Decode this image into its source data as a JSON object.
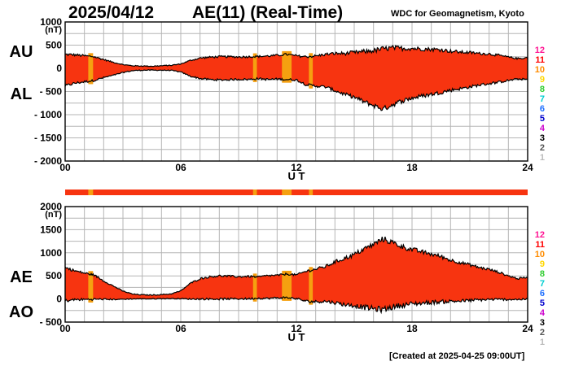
{
  "header": {
    "date": "2025/04/12",
    "title": "AE(11) (Real-Time)",
    "source": "WDC for Geomagnetism, Kyoto"
  },
  "footer": {
    "created": "[Created at 2025-04-25 09:00UT]"
  },
  "colors": {
    "fill": "#f73410",
    "highlight": "#f5a010",
    "outline": "#000000",
    "grid": "#b5b5b5",
    "station_count_colors": {
      "12": "#ff1493",
      "11": "#ff0000",
      "10": "#ff8c00",
      "9": "#ffd700",
      "8": "#32cd32",
      "7": "#00ced1",
      "6": "#1e6fff",
      "5": "#0000cd",
      "4": "#cc00cc",
      "3": "#000000",
      "2": "#555555",
      "1": "#bbbbbb"
    }
  },
  "chart_data": [
    {
      "type": "area",
      "panel": "AU/AL",
      "series_labels": [
        "AU",
        "AL"
      ],
      "y_unit_label": "(nT)",
      "xlabel": "U T",
      "xlim": [
        0,
        24
      ],
      "x_ticks": [
        "00",
        "06",
        "12",
        "18",
        "24"
      ],
      "ylim": [
        -2000,
        1000
      ],
      "y_ticks": [
        {
          "value": 1000,
          "label": "1000"
        },
        {
          "value": 500,
          "label": "500"
        },
        {
          "value": 0,
          "label": "0"
        },
        {
          "value": -500,
          "label": "- 500"
        },
        {
          "value": -1000,
          "label": "- 1000"
        },
        {
          "value": -1500,
          "label": "- 1500"
        },
        {
          "value": -2000,
          "label": "- 2000"
        }
      ],
      "grid": true,
      "x": [
        0,
        0.5,
        1,
        1.5,
        2,
        2.5,
        3,
        3.5,
        4,
        4.5,
        5,
        5.5,
        6,
        6.5,
        7,
        7.5,
        8,
        8.5,
        9,
        9.5,
        10,
        10.5,
        11,
        11.5,
        12,
        12.5,
        13,
        13.5,
        14,
        14.5,
        15,
        15.5,
        16,
        16.5,
        17,
        17.5,
        18,
        18.5,
        19,
        19.5,
        20,
        20.5,
        21,
        21.5,
        22,
        22.5,
        23,
        23.5,
        24
      ],
      "series": [
        {
          "name": "AU",
          "values": [
            300,
            290,
            270,
            250,
            190,
            130,
            80,
            55,
            50,
            45,
            55,
            65,
            95,
            170,
            220,
            240,
            250,
            250,
            245,
            250,
            255,
            265,
            280,
            300,
            270,
            250,
            265,
            300,
            320,
            320,
            340,
            360,
            380,
            420,
            440,
            430,
            430,
            420,
            410,
            400,
            370,
            350,
            340,
            320,
            310,
            280,
            240,
            210,
            230
          ]
        },
        {
          "name": "AL",
          "values": [
            -380,
            -320,
            -290,
            -260,
            -200,
            -150,
            -90,
            -50,
            -40,
            -40,
            -40,
            -45,
            -80,
            -170,
            -220,
            -240,
            -250,
            -245,
            -235,
            -240,
            -220,
            -240,
            -230,
            -240,
            -250,
            -350,
            -380,
            -400,
            -480,
            -560,
            -620,
            -720,
            -800,
            -880,
            -780,
            -700,
            -640,
            -600,
            -560,
            -520,
            -470,
            -440,
            -400,
            -360,
            -330,
            -300,
            -260,
            -230,
            -240
          ]
        }
      ],
      "highlight_bands": [
        [
          1.2,
          1.45
        ],
        [
          9.75,
          9.95
        ],
        [
          11.25,
          11.75
        ],
        [
          12.65,
          12.85
        ]
      ]
    },
    {
      "type": "area",
      "panel": "AE/AO",
      "series_labels": [
        "AE",
        "AO"
      ],
      "y_unit_label": "(nT)",
      "xlabel": "U T",
      "xlim": [
        0,
        24
      ],
      "x_ticks": [
        "00",
        "06",
        "12",
        "18",
        "24"
      ],
      "ylim": [
        -500,
        2000
      ],
      "y_ticks": [
        {
          "value": 2000,
          "label": "2000"
        },
        {
          "value": 1500,
          "label": "1500"
        },
        {
          "value": 1000,
          "label": "1000"
        },
        {
          "value": 500,
          "label": "500"
        },
        {
          "value": 0,
          "label": "0"
        },
        {
          "value": -500,
          "label": "- 500"
        }
      ],
      "grid": true,
      "x": [
        0,
        0.5,
        1,
        1.5,
        2,
        2.5,
        3,
        3.5,
        4,
        4.5,
        5,
        5.5,
        6,
        6.5,
        7,
        7.5,
        8,
        8.5,
        9,
        9.5,
        10,
        10.5,
        11,
        11.5,
        12,
        12.5,
        13,
        13.5,
        14,
        14.5,
        15,
        15.5,
        16,
        16.5,
        17,
        17.5,
        18,
        18.5,
        19,
        19.5,
        20,
        20.5,
        21,
        21.5,
        22,
        22.5,
        23,
        23.5,
        24
      ],
      "series": [
        {
          "name": "AE",
          "values": [
            680,
            610,
            560,
            520,
            390,
            280,
            170,
            105,
            90,
            85,
            95,
            110,
            175,
            340,
            440,
            480,
            500,
            495,
            480,
            490,
            475,
            505,
            510,
            540,
            520,
            600,
            645,
            700,
            800,
            880,
            960,
            1080,
            1180,
            1300,
            1220,
            1130,
            1070,
            1020,
            970,
            920,
            840,
            790,
            740,
            680,
            640,
            580,
            500,
            440,
            470
          ]
        },
        {
          "name": "AO",
          "values": [
            -40,
            -15,
            -10,
            -5,
            -5,
            -10,
            -5,
            2,
            5,
            3,
            8,
            10,
            8,
            0,
            0,
            0,
            0,
            3,
            5,
            5,
            18,
            13,
            25,
            30,
            10,
            -50,
            -58,
            -50,
            -80,
            -120,
            -140,
            -180,
            -210,
            -230,
            -170,
            -135,
            -105,
            -90,
            -75,
            -60,
            -50,
            -45,
            -30,
            -20,
            -10,
            -10,
            -10,
            -10,
            -5
          ]
        }
      ],
      "highlight_bands": [
        [
          1.2,
          1.45
        ],
        [
          9.75,
          9.95
        ],
        [
          11.25,
          11.75
        ],
        [
          12.65,
          12.85
        ]
      ]
    }
  ],
  "legend_counts": [
    "12",
    "11",
    "10",
    "9",
    "8",
    "7",
    "6",
    "5",
    "4",
    "3",
    "2",
    "1"
  ]
}
